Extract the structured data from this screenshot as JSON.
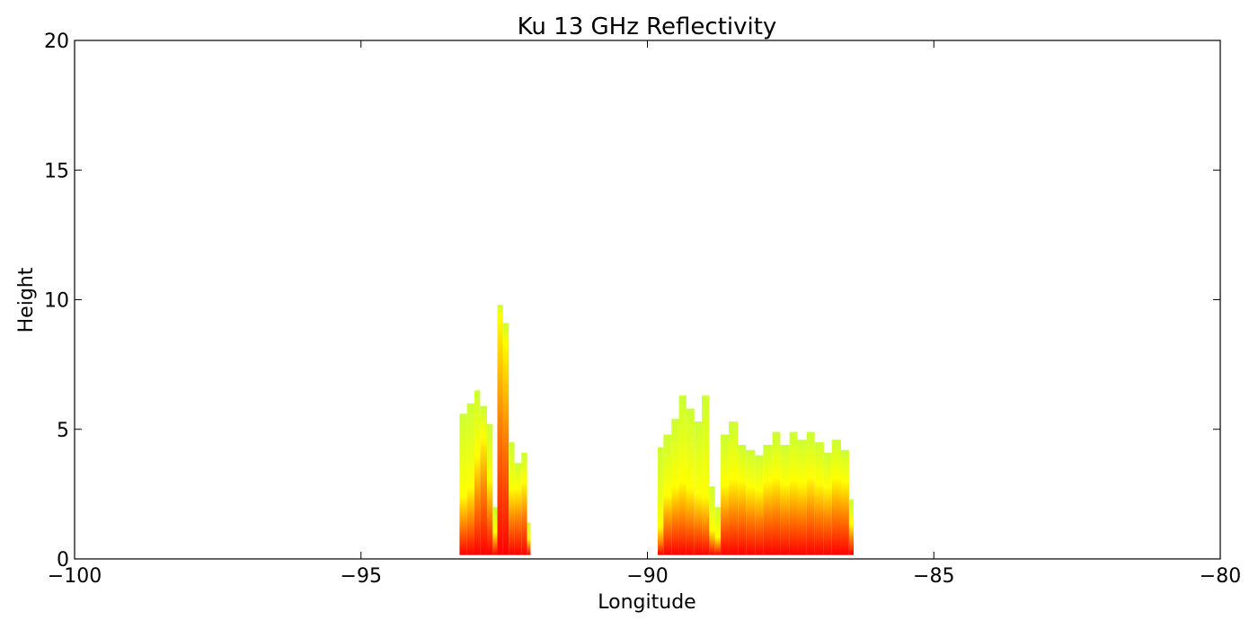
{
  "chart_data": {
    "type": "heatmap",
    "title": "Ku 13 GHz Reflectivity",
    "xlabel": "Longitude",
    "ylabel": "Height",
    "xlim": [
      -100,
      -80
    ],
    "ylim": [
      0,
      20
    ],
    "xticks": [
      -100,
      -95,
      -90,
      -85,
      -80
    ],
    "xtick_labels": [
      "−100",
      "−95",
      "−90",
      "−85",
      "−80"
    ],
    "yticks": [
      0,
      5,
      10,
      15,
      20
    ],
    "ytick_labels": [
      "0",
      "5",
      "10",
      "15",
      "20"
    ],
    "grid": false,
    "colormap": "autumn",
    "colors": {
      "low": "#ff0000",
      "mid": "#ff8000",
      "high": "#ffff00",
      "edge": "#ccff33"
    },
    "columns": [
      {
        "x": [
          -93.28,
          -93.15
        ],
        "top": 5.6,
        "core": 1.9
      },
      {
        "x": [
          -93.15,
          -93.02
        ],
        "top": 6.0,
        "core": 2.2
      },
      {
        "x": [
          -93.02,
          -92.92
        ],
        "top": 6.5,
        "core": 3.4
      },
      {
        "x": [
          -92.92,
          -92.8
        ],
        "top": 5.9,
        "core": 4.2
      },
      {
        "x": [
          -92.8,
          -92.7
        ],
        "top": 5.2,
        "core": 2.6
      },
      {
        "x": [
          -92.7,
          -92.62
        ],
        "top": 2.0,
        "core": 0.8
      },
      {
        "x": [
          -92.62,
          -92.52
        ],
        "top": 9.8,
        "core": 8.6
      },
      {
        "x": [
          -92.52,
          -92.42
        ],
        "top": 9.1,
        "core": 7.6
      },
      {
        "x": [
          -92.42,
          -92.32
        ],
        "top": 4.5,
        "core": 2.3
      },
      {
        "x": [
          -92.32,
          -92.2
        ],
        "top": 3.7,
        "core": 2.4
      },
      {
        "x": [
          -92.2,
          -92.1
        ],
        "top": 4.1,
        "core": 2.6
      },
      {
        "x": [
          -92.1,
          -92.04
        ],
        "top": 1.4,
        "core": 0.6
      },
      {
        "x": [
          -89.82,
          -89.72
        ],
        "top": 4.3,
        "core": 0.8
      },
      {
        "x": [
          -89.72,
          -89.58
        ],
        "top": 4.8,
        "core": 2.0
      },
      {
        "x": [
          -89.58,
          -89.45
        ],
        "top": 5.4,
        "core": 2.3
      },
      {
        "x": [
          -89.45,
          -89.32
        ],
        "top": 6.3,
        "core": 2.4
      },
      {
        "x": [
          -89.32,
          -89.18
        ],
        "top": 5.8,
        "core": 2.2
      },
      {
        "x": [
          -89.18,
          -89.05
        ],
        "top": 5.3,
        "core": 2.0
      },
      {
        "x": [
          -89.05,
          -88.92
        ],
        "top": 6.3,
        "core": 1.8
      },
      {
        "x": [
          -88.92,
          -88.82
        ],
        "top": 2.8,
        "core": 0.8
      },
      {
        "x": [
          -88.82,
          -88.72
        ],
        "top": 2.0,
        "core": 0.6
      },
      {
        "x": [
          -88.72,
          -88.58
        ],
        "top": 4.8,
        "core": 2.4
      },
      {
        "x": [
          -88.58,
          -88.42
        ],
        "top": 5.3,
        "core": 2.6
      },
      {
        "x": [
          -88.42,
          -88.28
        ],
        "top": 4.4,
        "core": 2.6
      },
      {
        "x": [
          -88.28,
          -88.12
        ],
        "top": 4.2,
        "core": 2.4
      },
      {
        "x": [
          -88.12,
          -87.98
        ],
        "top": 4.0,
        "core": 2.3
      },
      {
        "x": [
          -87.98,
          -87.82
        ],
        "top": 4.4,
        "core": 2.6
      },
      {
        "x": [
          -87.82,
          -87.68
        ],
        "top": 4.9,
        "core": 2.7
      },
      {
        "x": [
          -87.68,
          -87.52
        ],
        "top": 4.4,
        "core": 2.5
      },
      {
        "x": [
          -87.52,
          -87.38
        ],
        "top": 4.9,
        "core": 2.6
      },
      {
        "x": [
          -87.38,
          -87.22
        ],
        "top": 4.6,
        "core": 2.5
      },
      {
        "x": [
          -87.22,
          -87.08
        ],
        "top": 4.9,
        "core": 2.7
      },
      {
        "x": [
          -87.08,
          -86.92
        ],
        "top": 4.5,
        "core": 2.5
      },
      {
        "x": [
          -86.92,
          -86.78
        ],
        "top": 4.1,
        "core": 2.4
      },
      {
        "x": [
          -86.78,
          -86.62
        ],
        "top": 4.6,
        "core": 2.7
      },
      {
        "x": [
          -86.62,
          -86.48
        ],
        "top": 4.2,
        "core": 2.6
      },
      {
        "x": [
          -86.48,
          -86.4
        ],
        "top": 2.3,
        "core": 1.1
      }
    ]
  }
}
